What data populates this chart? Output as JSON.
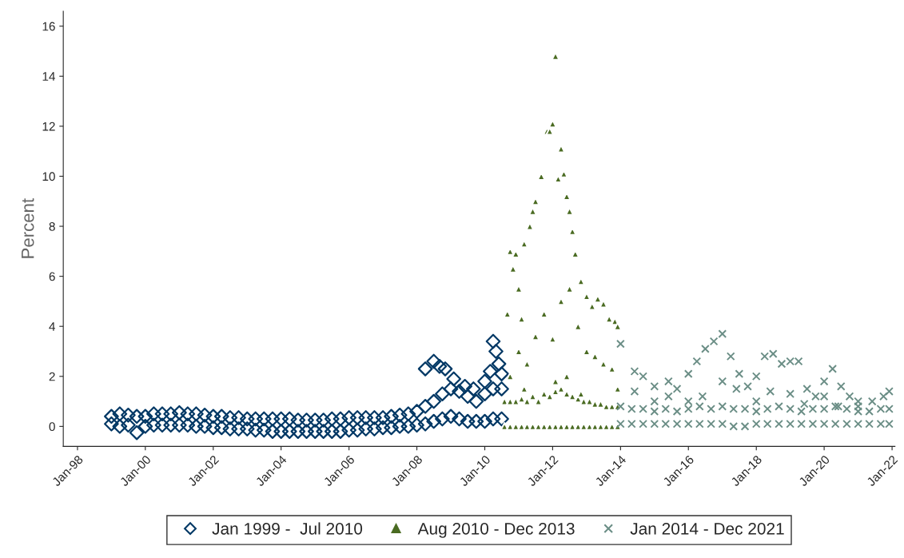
{
  "chart_data": {
    "type": "scatter",
    "ylabel": "Percent",
    "xlim": [
      "1997-08",
      "2022-02"
    ],
    "ylim": [
      -0.8,
      16.6
    ],
    "xticks": [
      {
        "value": "1998-01",
        "label": "Jan-98"
      },
      {
        "value": "2000-01",
        "label": "Jan-00"
      },
      {
        "value": "2002-01",
        "label": "Jan-02"
      },
      {
        "value": "2004-01",
        "label": "Jan-04"
      },
      {
        "value": "2006-01",
        "label": "Jan-06"
      },
      {
        "value": "2008-01",
        "label": "Jan-08"
      },
      {
        "value": "2010-01",
        "label": "Jan-10"
      },
      {
        "value": "2012-01",
        "label": "Jan-12"
      },
      {
        "value": "2014-01",
        "label": "Jan-14"
      },
      {
        "value": "2016-01",
        "label": "Jan-16"
      },
      {
        "value": "2018-01",
        "label": "Jan-18"
      },
      {
        "value": "2020-01",
        "label": "Jan-20"
      },
      {
        "value": "2022-01",
        "label": "Jan-22"
      }
    ],
    "yticks": [
      0,
      2,
      4,
      6,
      8,
      10,
      12,
      14,
      16
    ],
    "grid": false,
    "legend": "bottom",
    "series": [
      {
        "name": "Jan 1999 -  Jul 2010",
        "color": "#003865",
        "marker": "diamond",
        "x": [
          "1999-01",
          "1999-01",
          "1999-04",
          "1999-04",
          "1999-07",
          "1999-07",
          "1999-10",
          "1999-10",
          "2000-01",
          "2000-01",
          "2000-04",
          "2000-04",
          "2000-07",
          "2000-07",
          "2000-10",
          "2000-10",
          "2001-01",
          "2001-01",
          "2001-04",
          "2001-04",
          "2001-07",
          "2001-07",
          "2001-10",
          "2001-10",
          "2002-01",
          "2002-01",
          "2002-04",
          "2002-04",
          "2002-07",
          "2002-07",
          "2002-10",
          "2002-10",
          "2003-01",
          "2003-01",
          "2003-04",
          "2003-04",
          "2003-07",
          "2003-07",
          "2003-10",
          "2003-10",
          "2004-01",
          "2004-01",
          "2004-04",
          "2004-04",
          "2004-07",
          "2004-07",
          "2004-10",
          "2004-10",
          "2005-01",
          "2005-01",
          "2005-04",
          "2005-04",
          "2005-07",
          "2005-07",
          "2005-10",
          "2005-10",
          "2006-01",
          "2006-01",
          "2006-04",
          "2006-04",
          "2006-07",
          "2006-07",
          "2006-10",
          "2006-10",
          "2007-01",
          "2007-01",
          "2007-04",
          "2007-04",
          "2007-07",
          "2007-07",
          "2007-10",
          "2007-10",
          "2008-01",
          "2008-01",
          "2008-04",
          "2008-04",
          "2008-07",
          "2008-07",
          "2008-10",
          "2008-10",
          "2009-01",
          "2009-01",
          "2009-04",
          "2009-04",
          "2009-07",
          "2009-07",
          "2009-10",
          "2009-10",
          "2010-01",
          "2010-01",
          "2010-04",
          "2010-04",
          "2010-07",
          "2010-07",
          "2008-04",
          "2008-07",
          "2008-09",
          "2008-11",
          "2009-02",
          "2009-06",
          "2009-09",
          "2010-01",
          "2010-03",
          "2010-04",
          "2010-05",
          "2010-06",
          "2010-07"
        ],
        "values": [
          0.1,
          0.4,
          0.0,
          0.5,
          0.05,
          0.45,
          -0.25,
          0.4,
          0.0,
          0.4,
          0.05,
          0.5,
          0.05,
          0.5,
          0.05,
          0.5,
          0.05,
          0.55,
          0.05,
          0.5,
          0.0,
          0.5,
          0.0,
          0.45,
          -0.05,
          0.4,
          -0.05,
          0.4,
          -0.1,
          0.35,
          -0.1,
          0.35,
          -0.1,
          0.3,
          -0.15,
          0.3,
          -0.15,
          0.3,
          -0.2,
          0.3,
          -0.2,
          0.3,
          -0.2,
          0.3,
          -0.2,
          0.25,
          -0.2,
          0.25,
          -0.2,
          0.25,
          -0.2,
          0.25,
          -0.2,
          0.3,
          -0.2,
          0.3,
          -0.15,
          0.35,
          -0.15,
          0.35,
          -0.1,
          0.35,
          -0.1,
          0.35,
          -0.05,
          0.35,
          -0.05,
          0.4,
          0.0,
          0.45,
          0.0,
          0.5,
          0.05,
          0.6,
          0.1,
          0.8,
          0.2,
          1.0,
          0.3,
          1.3,
          0.4,
          1.5,
          0.3,
          1.4,
          0.2,
          1.2,
          0.2,
          1.0,
          0.2,
          1.3,
          0.3,
          1.5,
          0.3,
          1.5,
          2.3,
          2.6,
          2.4,
          2.3,
          1.9,
          1.6,
          1.5,
          1.8,
          2.2,
          3.4,
          3.0,
          2.5,
          2.1
        ]
      },
      {
        "name": "Aug 2010 - Dec 2013",
        "color": "#4a6b22",
        "marker": "triangle",
        "x": [
          "2010-08",
          "2010-08",
          "2010-10",
          "2010-10",
          "2010-12",
          "2010-12",
          "2011-02",
          "2011-02",
          "2011-04",
          "2011-04",
          "2011-06",
          "2011-06",
          "2011-08",
          "2011-08",
          "2011-10",
          "2011-10",
          "2011-12",
          "2011-12",
          "2012-02",
          "2012-02",
          "2012-04",
          "2012-04",
          "2012-06",
          "2012-06",
          "2012-08",
          "2012-08",
          "2012-10",
          "2012-10",
          "2012-12",
          "2012-12",
          "2013-02",
          "2013-02",
          "2013-04",
          "2013-04",
          "2013-06",
          "2013-06",
          "2013-08",
          "2013-08",
          "2013-10",
          "2013-10",
          "2013-12",
          "2013-12",
          "2010-09",
          "2010-10",
          "2010-11",
          "2010-12",
          "2011-01",
          "2011-02",
          "2011-03",
          "2011-05",
          "2011-06",
          "2011-07",
          "2011-09",
          "2011-11",
          "2011-12",
          "2012-01",
          "2012-02",
          "2012-03",
          "2012-04",
          "2012-05",
          "2012-06",
          "2012-07",
          "2012-08",
          "2012-09",
          "2012-11",
          "2013-01",
          "2013-03",
          "2013-05",
          "2013-07",
          "2013-09",
          "2013-11",
          "2013-12",
          "2010-10",
          "2011-01",
          "2011-04",
          "2011-07",
          "2011-10",
          "2012-01",
          "2012-04",
          "2012-07",
          "2012-10",
          "2013-01",
          "2013-04",
          "2013-07",
          "2013-10",
          "2013-12",
          "2011-03",
          "2012-02",
          "2012-06",
          "2012-11"
        ],
        "values": [
          0.0,
          1.0,
          0.0,
          1.0,
          0.0,
          1.0,
          0.0,
          1.1,
          0.0,
          1.0,
          0.0,
          1.2,
          0.0,
          1.0,
          0.0,
          1.3,
          0.0,
          1.2,
          0.0,
          1.4,
          0.0,
          1.5,
          0.0,
          1.3,
          0.0,
          1.2,
          0.0,
          1.1,
          0.0,
          1.0,
          0.0,
          1.0,
          0.0,
          0.9,
          0.0,
          0.9,
          0.0,
          0.8,
          0.0,
          0.8,
          0.0,
          0.8,
          4.5,
          7.0,
          6.3,
          6.9,
          5.5,
          4.3,
          7.3,
          8.0,
          8.6,
          9.0,
          10.0,
          11.8,
          11.8,
          12.1,
          14.8,
          9.9,
          11.1,
          10.1,
          9.2,
          8.6,
          7.8,
          6.9,
          5.8,
          5.2,
          4.8,
          5.1,
          4.9,
          4.3,
          4.2,
          4.0,
          2.0,
          3.0,
          2.5,
          3.6,
          4.5,
          3.5,
          5.0,
          5.5,
          4.0,
          3.0,
          2.8,
          2.5,
          2.3,
          1.5,
          1.5,
          1.8,
          2.0,
          1.3
        ]
      },
      {
        "name": "Jan 2014 - Dec 2021",
        "color": "#6b8e86",
        "marker": "cross",
        "x": [
          "2014-01",
          "2014-01",
          "2014-05",
          "2014-05",
          "2014-09",
          "2014-09",
          "2015-01",
          "2015-01",
          "2015-05",
          "2015-05",
          "2015-09",
          "2015-09",
          "2016-01",
          "2016-01",
          "2016-05",
          "2016-05",
          "2016-09",
          "2016-09",
          "2017-01",
          "2017-01",
          "2017-05",
          "2017-05",
          "2017-09",
          "2017-09",
          "2018-01",
          "2018-01",
          "2018-05",
          "2018-05",
          "2018-09",
          "2018-09",
          "2019-01",
          "2019-01",
          "2019-05",
          "2019-05",
          "2019-09",
          "2019-09",
          "2020-01",
          "2020-01",
          "2020-05",
          "2020-05",
          "2020-09",
          "2020-09",
          "2021-01",
          "2021-01",
          "2021-05",
          "2021-05",
          "2021-09",
          "2021-09",
          "2021-12",
          "2021-12",
          "2014-01",
          "2014-06",
          "2014-09",
          "2015-01",
          "2015-06",
          "2015-09",
          "2016-01",
          "2016-04",
          "2016-07",
          "2016-10",
          "2017-01",
          "2017-04",
          "2017-07",
          "2017-10",
          "2018-01",
          "2018-04",
          "2018-07",
          "2018-10",
          "2019-01",
          "2019-04",
          "2019-07",
          "2019-10",
          "2020-01",
          "2020-04",
          "2020-07",
          "2020-10",
          "2021-01",
          "2021-06",
          "2021-10",
          "2021-12",
          "2014-06",
          "2015-01",
          "2015-06",
          "2016-01",
          "2016-06",
          "2017-01",
          "2017-06",
          "2018-01",
          "2018-06",
          "2019-01",
          "2019-06",
          "2020-01",
          "2020-06",
          "2021-01"
        ],
        "values": [
          0.1,
          0.8,
          0.1,
          0.7,
          0.1,
          0.7,
          0.1,
          0.6,
          0.1,
          0.7,
          0.1,
          0.6,
          0.1,
          0.7,
          0.1,
          0.8,
          0.1,
          0.7,
          0.1,
          0.8,
          0.0,
          0.7,
          0.0,
          0.7,
          0.1,
          0.6,
          0.1,
          0.7,
          0.1,
          0.8,
          0.1,
          0.7,
          0.1,
          0.6,
          0.1,
          0.7,
          0.1,
          0.7,
          0.1,
          0.8,
          0.1,
          0.7,
          0.1,
          0.6,
          0.1,
          0.6,
          0.1,
          0.7,
          0.1,
          0.7,
          3.3,
          2.2,
          2.0,
          1.6,
          1.8,
          1.5,
          2.1,
          2.6,
          3.1,
          3.4,
          3.7,
          2.8,
          2.1,
          1.6,
          2.0,
          2.8,
          2.9,
          2.5,
          2.6,
          2.6,
          1.5,
          1.2,
          1.8,
          2.3,
          1.6,
          1.2,
          1.0,
          1.0,
          1.2,
          1.4,
          1.4,
          1.0,
          1.2,
          1.0,
          1.2,
          1.8,
          1.5,
          1.0,
          1.4,
          1.3,
          0.9,
          1.2,
          0.8,
          0.8
        ]
      }
    ]
  }
}
